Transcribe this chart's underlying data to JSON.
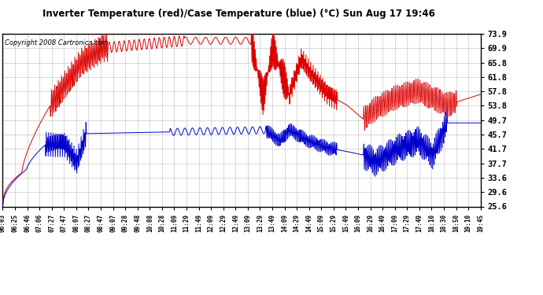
{
  "title": "Inverter Temperature (red)/Case Temperature (blue) (°C) Sun Aug 17 19:46",
  "copyright": "Copyright 2008 Cartronics.com",
  "y_ticks": [
    25.6,
    29.6,
    33.6,
    37.7,
    41.7,
    45.7,
    49.7,
    53.8,
    57.8,
    61.8,
    65.8,
    69.9,
    73.9
  ],
  "y_min": 25.6,
  "y_max": 73.9,
  "red_color": "#dd0000",
  "blue_color": "#0000cc",
  "bg_color": "#ffffff",
  "grid_color": "#bbbbbb",
  "plot_bg": "#ffffff",
  "x_labels": [
    "06:03",
    "06:25",
    "06:46",
    "07:06",
    "07:27",
    "07:47",
    "08:07",
    "08:27",
    "08:47",
    "09:07",
    "09:28",
    "09:48",
    "10:08",
    "10:28",
    "11:09",
    "11:29",
    "11:49",
    "12:09",
    "12:29",
    "12:49",
    "13:09",
    "13:29",
    "13:49",
    "14:09",
    "14:29",
    "14:49",
    "15:09",
    "15:29",
    "15:49",
    "16:09",
    "16:29",
    "16:49",
    "17:09",
    "17:29",
    "17:49",
    "18:10",
    "18:30",
    "18:50",
    "19:10",
    "19:45"
  ]
}
